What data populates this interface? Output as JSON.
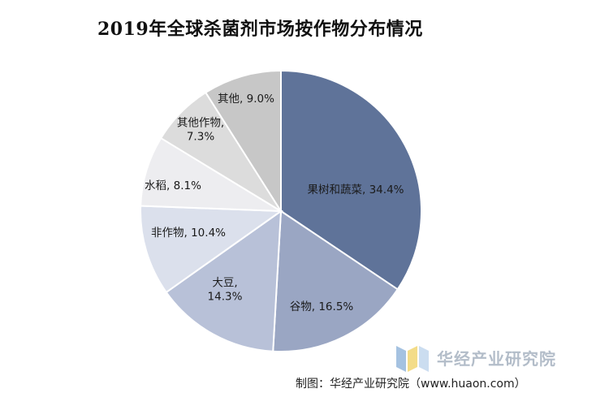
{
  "chart_data": {
    "type": "pie",
    "title": "2019年全球杀菌剂市场按作物分布情况",
    "slices": [
      {
        "name": "果树和蔬菜",
        "value": 34.4,
        "label_lines": [
          "果树和蔬菜, 34.4%"
        ],
        "color": "#5f7399"
      },
      {
        "name": "谷物",
        "value": 16.5,
        "label_lines": [
          "谷物, 16.5%"
        ],
        "color": "#9aa6c3"
      },
      {
        "name": "大豆",
        "value": 14.3,
        "label_lines": [
          "大豆,",
          "14.3%"
        ],
        "color": "#b8c1d8"
      },
      {
        "name": "非作物",
        "value": 10.4,
        "label_lines": [
          "非作物, 10.4%"
        ],
        "color": "#dbe0ec"
      },
      {
        "name": "水稻",
        "value": 8.1,
        "label_lines": [
          "水稻, 8.1%"
        ],
        "color": "#ededf0"
      },
      {
        "name": "其他作物",
        "value": 7.3,
        "label_lines": [
          "其他作物,",
          "7.3%"
        ],
        "color": "#dcdcdc"
      },
      {
        "name": "其他",
        "value": 9.0,
        "label_lines": [
          "其他, 9.0%"
        ],
        "color": "#c7c7c7"
      }
    ]
  },
  "watermark": {
    "text": "华经产业研究院"
  },
  "source": "制图：华经产业研究院（www.huaon.com）"
}
